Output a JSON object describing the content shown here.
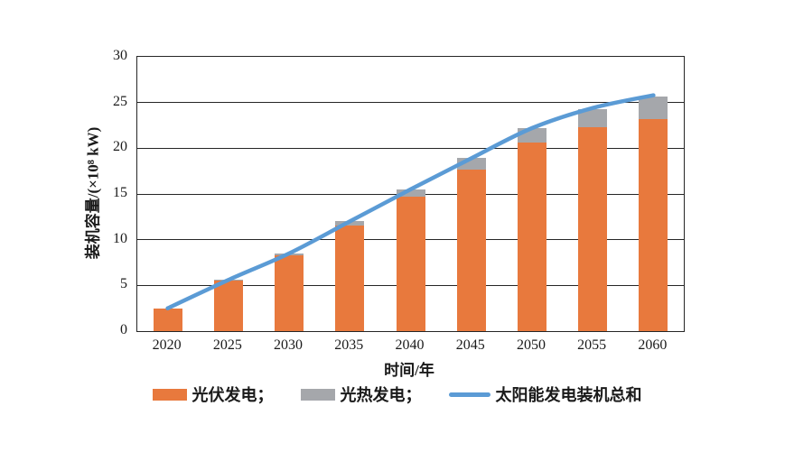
{
  "chart_data": {
    "type": "bar",
    "stacked": true,
    "categories": [
      "2020",
      "2025",
      "2030",
      "2035",
      "2040",
      "2045",
      "2050",
      "2055",
      "2060"
    ],
    "series": [
      {
        "name": "光伏发电",
        "kind": "bar",
        "color": "#E8793D",
        "values": [
          2.5,
          5.5,
          8.3,
          11.5,
          14.7,
          17.7,
          20.6,
          22.3,
          23.2
        ]
      },
      {
        "name": "光热发电",
        "kind": "bar",
        "color": "#A5A7AB",
        "values": [
          0.0,
          0.1,
          0.2,
          0.5,
          0.8,
          1.2,
          1.6,
          2.0,
          2.5
        ]
      },
      {
        "name": "太阳能发电装机总和",
        "kind": "line",
        "color": "#5B9BD5",
        "values": [
          2.5,
          5.6,
          8.5,
          12.0,
          15.5,
          18.9,
          22.2,
          24.4,
          25.8
        ]
      }
    ],
    "title": "",
    "xlabel": "时间/年",
    "ylabel": "装机容量/(×10⁸ kW)",
    "ylim": [
      0,
      30
    ],
    "yticks": [
      0,
      5,
      10,
      15,
      20,
      25,
      30
    ],
    "grid": "horizontal",
    "legend_position": "bottom"
  },
  "legend": {
    "items": [
      {
        "label": "光伏发电；",
        "swatch": "bar",
        "color": "#E8793D"
      },
      {
        "label": "光热发电；",
        "swatch": "bar",
        "color": "#A5A7AB"
      },
      {
        "label": "太阳能发电装机总和",
        "swatch": "line",
        "color": "#5B9BD5"
      }
    ]
  },
  "colors": {
    "pv_bar": "#E8793D",
    "csp_bar": "#A5A7AB",
    "total_line": "#5B9BD5",
    "grid": "#262626",
    "text": "#1a1a1a"
  }
}
